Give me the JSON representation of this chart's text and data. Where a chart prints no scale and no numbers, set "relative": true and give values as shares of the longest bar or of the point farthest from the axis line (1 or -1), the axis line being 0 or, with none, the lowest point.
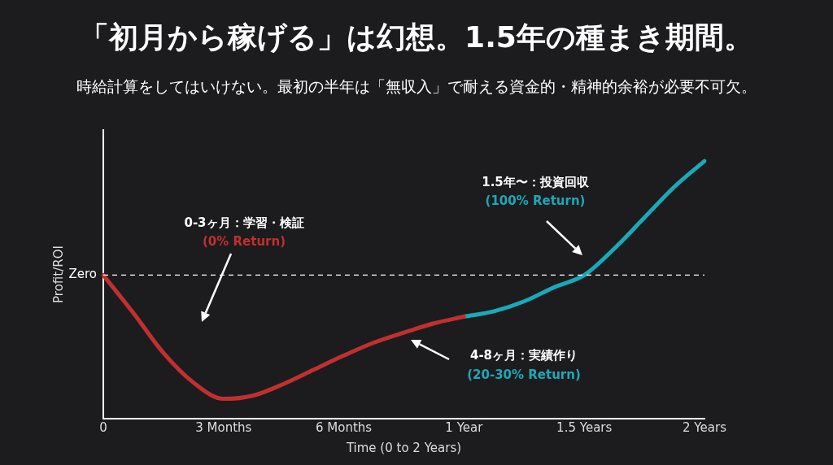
{
  "chart_data": {
    "type": "line",
    "title": "「初月から稼げる」は幻想。1.5年の種まき期間。",
    "subtitle": "時給計算をしてはいけない。最初の半年は「無収入」で耐える資金的・精神的余裕が必要不可欠。",
    "xlabel": "Time (0 to 2 Years)",
    "ylabel": "Profit/ROI",
    "relative": true,
    "categories": [
      "0",
      null,
      null,
      null,
      "3 Months",
      null,
      null,
      null,
      "6 Months",
      null,
      null,
      null,
      "1 Year",
      null,
      null,
      null,
      "1.5 Years",
      null,
      null,
      null,
      "2 Years"
    ],
    "series": [
      {
        "color": "#c0302f",
        "values": [
          0.557,
          0.41,
          0.255,
          0.14,
          0.077,
          0.09,
          0.135,
          0.19,
          0.245,
          0.295,
          0.334,
          0.37,
          0.396,
          null,
          null,
          null,
          null,
          null,
          null,
          null,
          null
        ]
      },
      {
        "color": "#1aa9b8",
        "values": [
          null,
          null,
          null,
          null,
          null,
          null,
          null,
          null,
          null,
          null,
          null,
          null,
          0.396,
          0.417,
          0.455,
          0.51,
          0.557,
          0.66,
          0.78,
          0.9,
          1
        ]
      }
    ],
    "ref_lines": [
      {
        "axis": "y",
        "value": 0.557,
        "label": "Zero",
        "color": "#ffffff",
        "line_style": "dashed"
      }
    ],
    "annotations": [
      "0-3ヶ月：学習・検証",
      "(0% Return)",
      "4-8ヶ月：実績作り",
      "(20-30% Return)",
      "1.5年〜：投資回収",
      "(100% Return)"
    ],
    "grid": false,
    "legend": false,
    "marker": "none",
    "line_style": "solid"
  }
}
